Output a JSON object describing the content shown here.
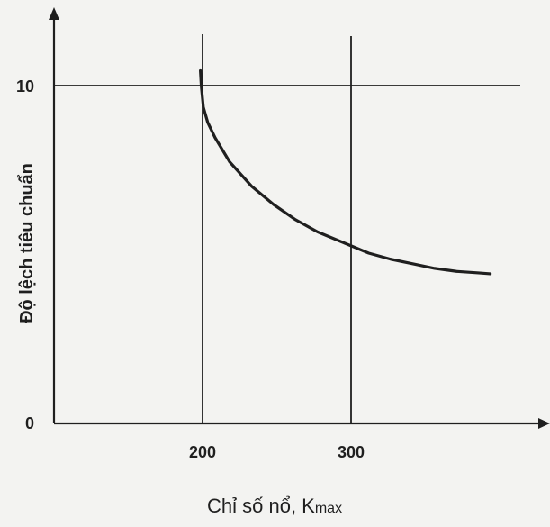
{
  "chart_data": {
    "type": "line",
    "title": "",
    "xlabel_main": "Chỉ số nổ, K",
    "xlabel_sub": "max",
    "ylabel": "Độ lệch tiêu chuẩn",
    "xticks": [
      "200",
      "300"
    ],
    "yticks": [
      "0",
      "10"
    ],
    "xlim": [
      100,
      405
    ],
    "ylim": [
      0,
      12.8
    ],
    "grid": true,
    "series": [
      {
        "values": [
          [
            200,
            11.6
          ],
          [
            200.6,
            11.1
          ],
          [
            202,
            10.4
          ],
          [
            205,
            9.9
          ],
          [
            210,
            9.4
          ],
          [
            220,
            8.6
          ],
          [
            235,
            7.8
          ],
          [
            250,
            7.2
          ],
          [
            265,
            6.7
          ],
          [
            280,
            6.3
          ],
          [
            295,
            6.0
          ],
          [
            300,
            5.9
          ],
          [
            315,
            5.6
          ],
          [
            330,
            5.4
          ],
          [
            345,
            5.25
          ],
          [
            360,
            5.1
          ],
          [
            375,
            5.0
          ],
          [
            390,
            4.95
          ],
          [
            398,
            4.92
          ]
        ]
      }
    ]
  },
  "colors": {
    "ink": "#1f1f1f",
    "background": "#f3f3f1"
  }
}
